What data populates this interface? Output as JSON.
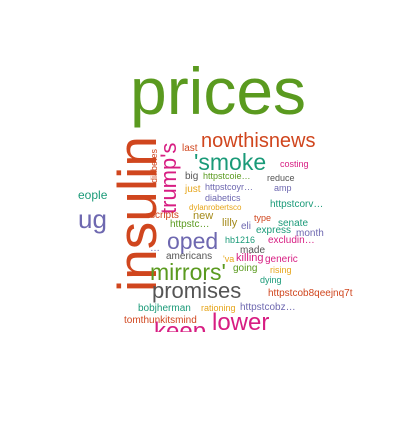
{
  "words": [
    {
      "text": "prices",
      "color": "#5a9a1f"
    },
    {
      "text": "insulin",
      "color": "#d0461e"
    },
    {
      "text": "trump's",
      "color": "#d71d82"
    },
    {
      "text": "nowthisnews",
      "color": "#d0461e"
    },
    {
      "text": "'smoke",
      "color": "#1a9a78"
    },
    {
      "text": "last",
      "color": "#d0461e"
    },
    {
      "text": "diabetes",
      "color": "#d0461e"
    },
    {
      "text": "costing",
      "color": "#d71d82"
    },
    {
      "text": "big",
      "color": "#555555"
    },
    {
      "text": "httpstcoie…",
      "color": "#5a9a1f"
    },
    {
      "text": "reduce",
      "color": "#555555"
    },
    {
      "text": "just",
      "color": "#e6a51a"
    },
    {
      "text": "httpstcoyr…",
      "color": "#6e68b0"
    },
    {
      "text": "amp",
      "color": "#6e68b0"
    },
    {
      "text": "eople",
      "color": "#1a9a78"
    },
    {
      "text": "diabetics",
      "color": "#6e68b0"
    },
    {
      "text": "dylanrobertsco",
      "color": "#e6a51a"
    },
    {
      "text": "httpstcorv…",
      "color": "#1a9a78"
    },
    {
      "text": "ug",
      "color": "#6e68b0"
    },
    {
      "text": "scripts",
      "color": "#d0461e"
    },
    {
      "text": "new",
      "color": "#a48a1a"
    },
    {
      "text": "type",
      "color": "#d0461e"
    },
    {
      "text": "httpstc…",
      "color": "#5a9a1f"
    },
    {
      "text": "lilly",
      "color": "#a48a1a"
    },
    {
      "text": "eli",
      "color": "#6e68b0"
    },
    {
      "text": "senate",
      "color": "#1a9a78"
    },
    {
      "text": "express",
      "color": "#1a9a78"
    },
    {
      "text": "month",
      "color": "#6e68b0"
    },
    {
      "text": "oped",
      "color": "#6e68b0"
    },
    {
      "text": "hb1216",
      "color": "#1a9a78"
    },
    {
      "text": "excludin…",
      "color": "#d71d82"
    },
    {
      "text": "…",
      "color": "#6e68b0"
    },
    {
      "text": "made",
      "color": "#555555"
    },
    {
      "text": "americans",
      "color": "#555555"
    },
    {
      "text": "'va",
      "color": "#e6a51a"
    },
    {
      "text": "killing",
      "color": "#d71d82"
    },
    {
      "text": "generic",
      "color": "#d71d82"
    },
    {
      "text": "mirrors'",
      "color": "#5a9a1f"
    },
    {
      "text": "going",
      "color": "#5a9a1f"
    },
    {
      "text": "rising",
      "color": "#e6a51a"
    },
    {
      "text": "dying",
      "color": "#1a9a78"
    },
    {
      "text": "promises",
      "color": "#555555"
    },
    {
      "text": "httpstcob8qeejnq7t",
      "color": "#d0461e"
    },
    {
      "text": "bobjherman",
      "color": "#1a9a78"
    },
    {
      "text": "rationing",
      "color": "#e6a51a"
    },
    {
      "text": "httpstcobz…",
      "color": "#6e68b0"
    },
    {
      "text": "tomthunkitsmind",
      "color": "#d0461e"
    },
    {
      "text": "lower",
      "color": "#d71d82"
    },
    {
      "text": "keep",
      "color": "#d71d82"
    }
  ]
}
